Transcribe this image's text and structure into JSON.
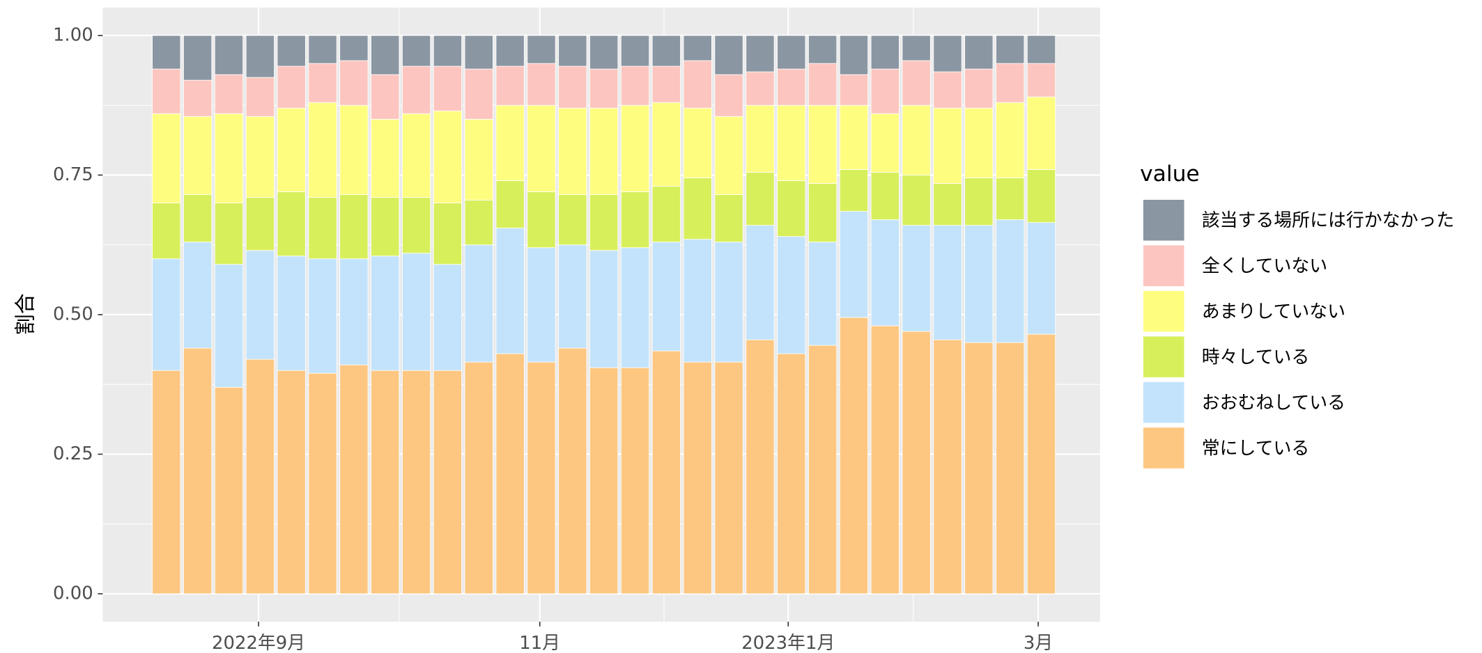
{
  "chart_data": {
    "type": "stacked_bar",
    "y_label": "割合",
    "legend_title": "value",
    "legend": "right",
    "grid": true,
    "x": [
      1,
      2,
      3,
      4,
      5,
      6,
      7,
      8,
      9,
      10,
      11,
      12,
      13,
      14,
      15,
      16,
      17,
      18,
      19,
      20,
      21,
      22,
      23,
      24,
      25,
      26,
      27,
      28,
      29
    ],
    "xlim": [
      -1.04,
      30.88
    ],
    "xticks": [
      {
        "value": 3.95,
        "label": "2022年9月"
      },
      {
        "value": 12.95,
        "label": "11月"
      },
      {
        "value": 20.9,
        "label": "2023年1月"
      },
      {
        "value": 28.9,
        "label": "3月"
      }
    ],
    "ylim": [
      -0.05,
      1.05
    ],
    "yticks": [
      {
        "value": 0,
        "label": "0.00"
      },
      {
        "value": 0.25,
        "label": "0.25"
      },
      {
        "value": 0.5,
        "label": "0.50"
      },
      {
        "value": 0.75,
        "label": "0.75"
      },
      {
        "value": 1,
        "label": "1.00"
      }
    ],
    "series": [
      {
        "name": "該当する場所には行かなかった",
        "color": "#8a96a2",
        "values": [
          0.06,
          0.08,
          0.07,
          0.075,
          0.055,
          0.05,
          0.045,
          0.07,
          0.055,
          0.055,
          0.06,
          0.055,
          0.05,
          0.055,
          0.06,
          0.055,
          0.055,
          0.045,
          0.07,
          0.065,
          0.06,
          0.05,
          0.07,
          0.06,
          0.045,
          0.065,
          0.06,
          0.05,
          0.05
        ]
      },
      {
        "name": "全くしていない",
        "color": "#fdc5bf",
        "values": [
          0.08,
          0.065,
          0.07,
          0.07,
          0.075,
          0.07,
          0.08,
          0.08,
          0.085,
          0.08,
          0.09,
          0.07,
          0.075,
          0.075,
          0.07,
          0.07,
          0.065,
          0.085,
          0.075,
          0.06,
          0.065,
          0.075,
          0.055,
          0.08,
          0.08,
          0.065,
          0.07,
          0.07,
          0.06
        ]
      },
      {
        "name": "あまりしていない",
        "color": "#fffd80",
        "values": [
          0.16,
          0.14,
          0.16,
          0.145,
          0.15,
          0.17,
          0.16,
          0.14,
          0.15,
          0.165,
          0.145,
          0.135,
          0.155,
          0.155,
          0.155,
          0.155,
          0.15,
          0.125,
          0.14,
          0.12,
          0.135,
          0.14,
          0.115,
          0.105,
          0.125,
          0.135,
          0.125,
          0.135,
          0.13
        ]
      },
      {
        "name": "時々している",
        "color": "#d8ef5c",
        "values": [
          0.1,
          0.085,
          0.11,
          0.095,
          0.115,
          0.11,
          0.115,
          0.105,
          0.1,
          0.11,
          0.08,
          0.085,
          0.1,
          0.09,
          0.1,
          0.1,
          0.1,
          0.11,
          0.085,
          0.095,
          0.1,
          0.105,
          0.075,
          0.085,
          0.09,
          0.075,
          0.085,
          0.075,
          0.095
        ]
      },
      {
        "name": "おおむねしている",
        "color": "#c2e3fb",
        "values": [
          0.2,
          0.19,
          0.22,
          0.195,
          0.205,
          0.205,
          0.19,
          0.205,
          0.21,
          0.19,
          0.21,
          0.225,
          0.205,
          0.185,
          0.21,
          0.215,
          0.195,
          0.22,
          0.215,
          0.205,
          0.21,
          0.185,
          0.19,
          0.19,
          0.19,
          0.205,
          0.21,
          0.22,
          0.2
        ]
      },
      {
        "name": "常にしている",
        "color": "#fdc782",
        "values": [
          0.4,
          0.44,
          0.37,
          0.42,
          0.4,
          0.395,
          0.41,
          0.4,
          0.4,
          0.4,
          0.415,
          0.43,
          0.415,
          0.44,
          0.405,
          0.405,
          0.435,
          0.415,
          0.415,
          0.455,
          0.43,
          0.445,
          0.495,
          0.48,
          0.47,
          0.455,
          0.45,
          0.45,
          0.465
        ]
      }
    ]
  }
}
